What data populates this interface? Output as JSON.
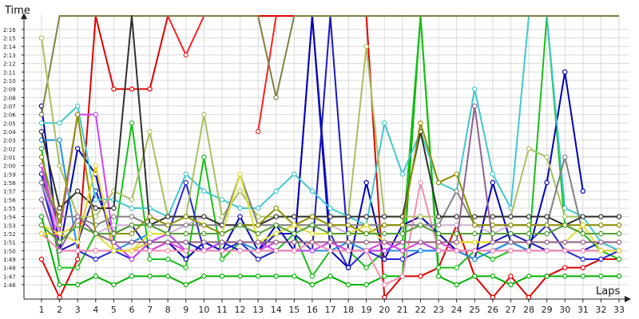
{
  "chart_data": {
    "type": "line",
    "title": "",
    "xlabel": "Laps",
    "ylabel": "Time",
    "grid": true,
    "x": [
      1,
      2,
      3,
      4,
      5,
      6,
      7,
      8,
      9,
      10,
      11,
      12,
      13,
      14,
      15,
      16,
      17,
      18,
      19,
      20,
      21,
      22,
      23,
      24,
      25,
      26,
      27,
      28,
      29,
      30,
      31,
      32,
      33
    ],
    "x_tick_labels": [
      "1",
      "2",
      "3",
      "4",
      "5",
      "6",
      "7",
      "8",
      "9",
      "10",
      "11",
      "12",
      "13",
      "14",
      "15",
      "16",
      "17",
      "18",
      "19",
      "20",
      "21",
      "22",
      "23",
      "24",
      "25",
      "26",
      "27",
      "28",
      "29",
      "30",
      "31",
      "32",
      "33"
    ],
    "y_tick_labels": [
      "1:46",
      "1:47",
      "1:48",
      "1:49",
      "1:50",
      "1:51",
      "1:52",
      "1:53",
      "1:54",
      "1:55",
      "1:56",
      "1:57",
      "1:58",
      "1:59",
      "2:00",
      "2:01",
      "2:02",
      "2:03",
      "2:04",
      "2:05",
      "2:06",
      "2:07",
      "2:08",
      "2:09",
      "2:10",
      "2:11",
      "2:12",
      "2:13",
      "2:14",
      "2:15",
      "2:16"
    ],
    "ylim_seconds": [
      104,
      262
    ],
    "series": [
      {
        "color": "#e00000",
        "values": [
          109,
          96,
          109,
          262,
          129,
          129,
          129,
          262,
          null,
          null,
          null,
          null,
          262,
          262,
          262,
          262,
          262,
          262,
          262,
          101,
          107,
          107,
          108,
          113,
          107,
          104,
          107,
          103,
          107,
          108,
          108,
          109,
          109
        ]
      },
      {
        "color": "#ff2020",
        "values": [
          null,
          null,
          null,
          null,
          null,
          null,
          null,
          262,
          133,
          262,
          null,
          null,
          124,
          262,
          null,
          null,
          null,
          null,
          null,
          null,
          null,
          null,
          null,
          null,
          null,
          null,
          null,
          null,
          null,
          null,
          null,
          null,
          null
        ]
      },
      {
        "color": "#00b000",
        "values": [
          114,
          106,
          106,
          107,
          106,
          107,
          107,
          107,
          106,
          107,
          107,
          107,
          107,
          107,
          107,
          106,
          107,
          106,
          106,
          107,
          107,
          262,
          107,
          106,
          107,
          107,
          106,
          107,
          107,
          107,
          107,
          107,
          107
        ]
      },
      {
        "color": "#18c018",
        "values": [
          122,
          108,
          108,
          112,
          111,
          125,
          109,
          109,
          108,
          121,
          109,
          111,
          109,
          110,
          112,
          107,
          110,
          110,
          108,
          110,
          111,
          262,
          108,
          108,
          110,
          109,
          110,
          110,
          262,
          113,
          112,
          110,
          109
        ]
      },
      {
        "color": "#2828d8",
        "values": [
          118,
          110,
          110,
          109,
          110,
          109,
          111,
          112,
          118,
          110,
          110,
          111,
          109,
          110,
          110,
          262,
          112,
          108,
          110,
          109,
          109,
          110,
          110,
          110,
          110,
          110,
          111,
          111,
          113,
          110,
          109,
          109,
          110
        ]
      },
      {
        "color": "#0000b8",
        "values": [
          127,
          110,
          122,
          119,
          110,
          110,
          111,
          111,
          109,
          111,
          110,
          114,
          110,
          113,
          110,
          262,
          110,
          108,
          118,
          109,
          113,
          114,
          112,
          110,
          109,
          118,
          111,
          110,
          118,
          131,
          117,
          null,
          null
        ]
      },
      {
        "color": "#1818c0",
        "values": [
          119,
          110,
          111,
          117,
          112,
          113,
          110,
          111,
          111,
          110,
          111,
          110,
          110,
          112,
          112,
          110,
          262,
          110,
          110,
          110,
          111,
          111,
          110,
          110,
          110,
          111,
          112,
          111,
          110,
          110,
          110,
          111,
          110
        ]
      },
      {
        "color": "#40c8d0",
        "values": [
          125,
          125,
          127,
          116,
          116,
          115,
          115,
          114,
          119,
          117,
          116,
          115,
          115,
          117,
          119,
          117,
          115,
          114,
          113,
          125,
          119,
          124,
          118,
          117,
          129,
          119,
          115,
          262,
          262,
          115,
          114,
          111,
          110
        ]
      },
      {
        "color": "#2090e0",
        "values": [
          123,
          123,
          110,
          110,
          110,
          111,
          112,
          112,
          110,
          110,
          111,
          111,
          110,
          110,
          110,
          110,
          110,
          111,
          110,
          110,
          110,
          110,
          110,
          110,
          109,
          110,
          111,
          110,
          110,
          110,
          110,
          110,
          110
        ]
      },
      {
        "color": "#cc44ee",
        "values": [
          120,
          112,
          126,
          126,
          111,
          109,
          111,
          112,
          110,
          110,
          111,
          111,
          111,
          110,
          110,
          110,
          111,
          110,
          110,
          110,
          111,
          111,
          110,
          110,
          110,
          110,
          110,
          110,
          110,
          110,
          110,
          110,
          110
        ]
      },
      {
        "color": "#e040e0",
        "values": [
          120,
          110,
          110,
          110,
          110,
          110,
          110,
          111,
          110,
          110,
          110,
          110,
          110,
          111,
          111,
          111,
          111,
          110,
          110,
          111,
          110,
          111,
          111,
          110,
          110,
          110,
          110,
          110,
          110,
          110,
          110,
          110,
          110
        ]
      },
      {
        "color": "#808040",
        "values": [
          126,
          153,
          262,
          262,
          262,
          262,
          262,
          262,
          262,
          262,
          262,
          262,
          262,
          128,
          262,
          262,
          262,
          262,
          262,
          262,
          262,
          262,
          262,
          262,
          262,
          262,
          262,
          262,
          262,
          262,
          262,
          262,
          262
        ]
      },
      {
        "color": "#a8c060",
        "values": [
          135,
          120,
          114,
          114,
          117,
          116,
          124,
          114,
          114,
          126,
          114,
          117,
          114,
          114,
          114,
          114,
          114,
          114,
          134,
          114,
          114,
          114,
          114,
          114,
          114,
          114,
          114,
          122,
          121,
          114,
          114,
          114,
          114
        ]
      },
      {
        "color": "#d0b0d8",
        "values": [
          118,
          112,
          113,
          112,
          113,
          113,
          113,
          112,
          113,
          114,
          113,
          113,
          113,
          113,
          113,
          113,
          113,
          112,
          113,
          113,
          113,
          113,
          113,
          113,
          113,
          112,
          113,
          113,
          113,
          113,
          113,
          113,
          113
        ]
      },
      {
        "color": "#f090b0",
        "values": [
          112,
          110,
          110,
          110,
          110,
          110,
          110,
          110,
          110,
          110,
          110,
          110,
          110,
          110,
          110,
          111,
          110,
          110,
          110,
          106,
          107,
          118,
          110,
          110,
          110,
          110,
          110,
          110,
          110,
          110,
          110,
          110,
          110
        ]
      },
      {
        "color": "#808080",
        "values": [
          118,
          114,
          114,
          113,
          114,
          114,
          113,
          113,
          113,
          113,
          113,
          119,
          113,
          113,
          113,
          113,
          113,
          113,
          113,
          113,
          113,
          113,
          113,
          117,
          113,
          113,
          113,
          113,
          113,
          121,
          112,
          112,
          112
        ]
      },
      {
        "color": "#303030",
        "values": [
          124,
          115,
          117,
          115,
          115,
          139,
          113,
          114,
          114,
          114,
          113,
          113,
          113,
          114,
          114,
          114,
          114,
          114,
          114,
          114,
          114,
          124,
          114,
          114,
          114,
          114,
          114,
          114,
          114,
          113,
          114,
          114,
          114
        ]
      },
      {
        "color": "#909000",
        "values": [
          121,
          113,
          126,
          112,
          112,
          112,
          114,
          113,
          114,
          113,
          112,
          113,
          113,
          115,
          113,
          114,
          113,
          113,
          112,
          113,
          113,
          125,
          118,
          119,
          113,
          113,
          113,
          113,
          113,
          113,
          113,
          113,
          113
        ]
      },
      {
        "color": "#e0e030",
        "values": [
          113,
          112,
          113,
          112,
          110,
          110,
          112,
          112,
          112,
          112,
          112,
          119,
          111,
          112,
          113,
          112,
          112,
          112,
          113,
          111,
          111,
          111,
          111,
          111,
          111,
          111,
          111,
          111,
          111,
          111,
          113,
          110,
          110
        ]
      },
      {
        "color": "#f0d020",
        "values": [
          112,
          112,
          111,
          120,
          110,
          110,
          111,
          111,
          111,
          111,
          111,
          111,
          111,
          111,
          111,
          111,
          111,
          111,
          111,
          111,
          111,
          111,
          111,
          111,
          111,
          111,
          111,
          111,
          111,
          111,
          111,
          111,
          111
        ]
      },
      {
        "color": "#906090",
        "values": [
          116,
          110,
          114,
          112,
          111,
          111,
          111,
          111,
          111,
          111,
          111,
          111,
          111,
          111,
          111,
          111,
          111,
          111,
          111,
          111,
          111,
          111,
          111,
          111,
          127,
          111,
          111,
          111,
          111,
          111,
          111,
          111,
          111
        ]
      },
      {
        "color": "#50a030",
        "values": [
          113,
          111,
          113,
          112,
          112,
          113,
          113,
          112,
          112,
          112,
          112,
          113,
          112,
          113,
          112,
          113,
          112,
          112,
          112,
          112,
          112,
          113,
          112,
          112,
          112,
          112,
          112,
          112,
          112,
          113,
          112,
          112,
          112
        ]
      }
    ]
  }
}
